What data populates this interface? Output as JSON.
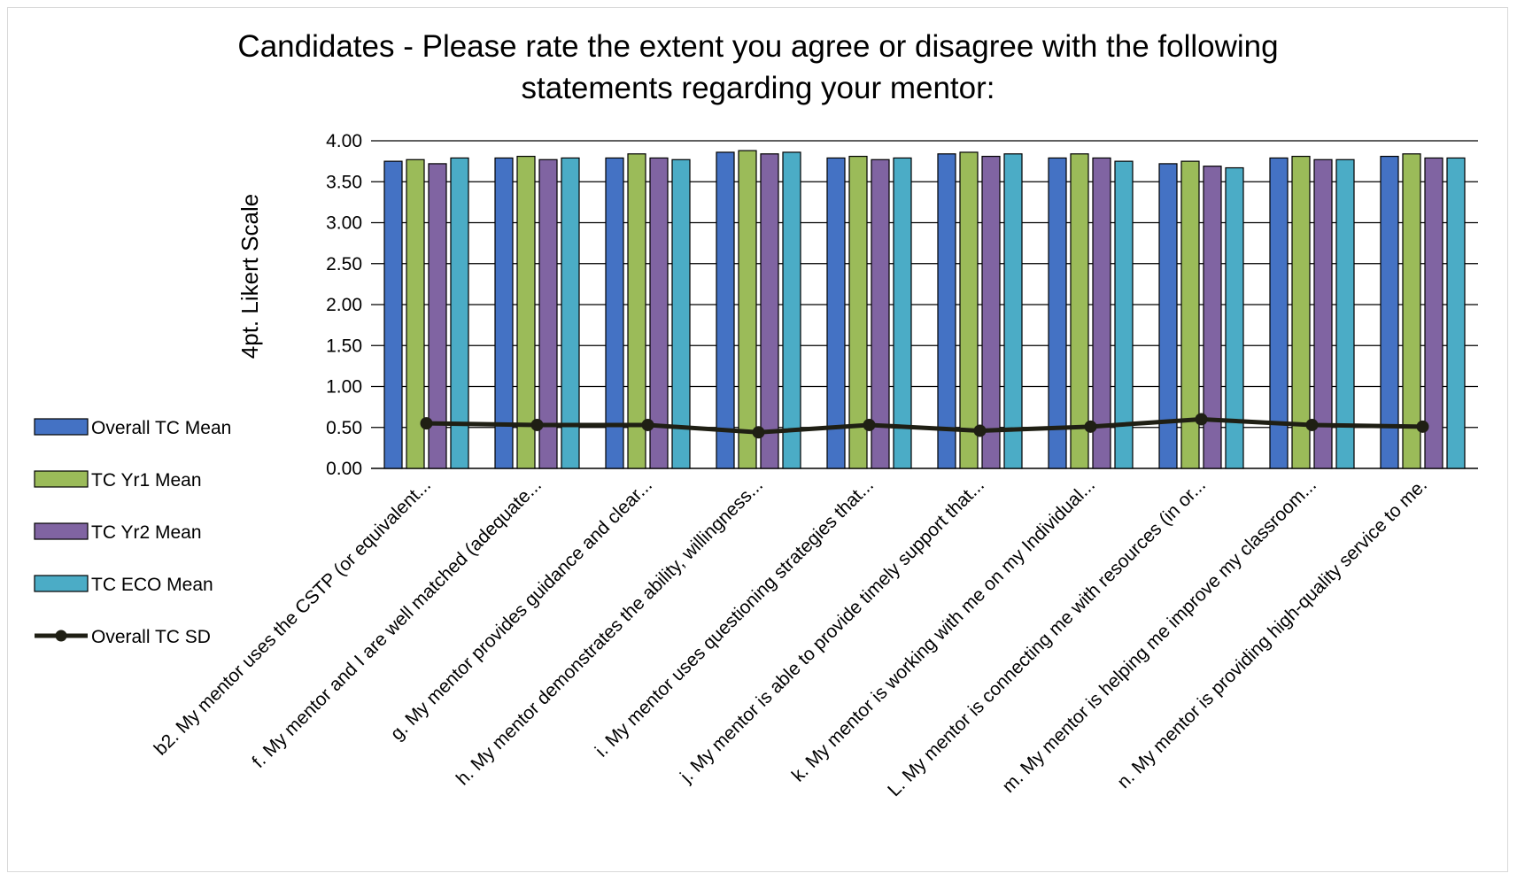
{
  "chart_data": {
    "type": "bar",
    "title_lines": [
      "Candidates - Please rate the extent you agree or disagree with the following",
      "statements regarding your mentor:"
    ],
    "ylabel": "4pt. Likert Scale",
    "xlabel": "",
    "ylim": [
      0,
      4
    ],
    "y_ticks": [
      "0.00",
      "0.50",
      "1.00",
      "1.50",
      "2.00",
      "2.50",
      "3.00",
      "3.50",
      "4.00"
    ],
    "grid": true,
    "legend_position": "left",
    "categories": [
      "b2. My mentor uses the CSTP (or equivalent...",
      "f. My mentor and I are well matched (adequate...",
      "g. My mentor provides guidance and clear...",
      "h. My mentor demonstrates the ability, willingness...",
      "i. My mentor uses questioning strategies that...",
      "j. My mentor is able to provide timely support that...",
      "k. My mentor is working with me on my Individual...",
      "L. My mentor is connecting me with resources (in or...",
      "m. My mentor is helping me improve my classroom...",
      "n. My mentor is providing high-quality service to me."
    ],
    "series": [
      {
        "name": "Overall TC Mean",
        "kind": "bar",
        "color": "#4472c4",
        "values": [
          3.75,
          3.79,
          3.79,
          3.86,
          3.79,
          3.84,
          3.79,
          3.72,
          3.79,
          3.81
        ]
      },
      {
        "name": "TC Yr1 Mean",
        "kind": "bar",
        "color": "#9bbb59",
        "values": [
          3.77,
          3.81,
          3.84,
          3.88,
          3.81,
          3.86,
          3.84,
          3.75,
          3.81,
          3.84
        ]
      },
      {
        "name": "TC Yr2 Mean",
        "kind": "bar",
        "color": "#8064a2",
        "values": [
          3.72,
          3.77,
          3.79,
          3.84,
          3.77,
          3.81,
          3.79,
          3.69,
          3.77,
          3.79
        ]
      },
      {
        "name": "TC ECO Mean",
        "kind": "bar",
        "color": "#4bacc6",
        "values": [
          3.79,
          3.79,
          3.77,
          3.86,
          3.79,
          3.84,
          3.75,
          3.67,
          3.77,
          3.79
        ]
      },
      {
        "name": "Overall TC SD",
        "kind": "line",
        "color": "#1f1f14",
        "values": [
          0.55,
          0.53,
          0.53,
          0.44,
          0.53,
          0.46,
          0.51,
          0.6,
          0.53,
          0.51
        ]
      }
    ]
  }
}
